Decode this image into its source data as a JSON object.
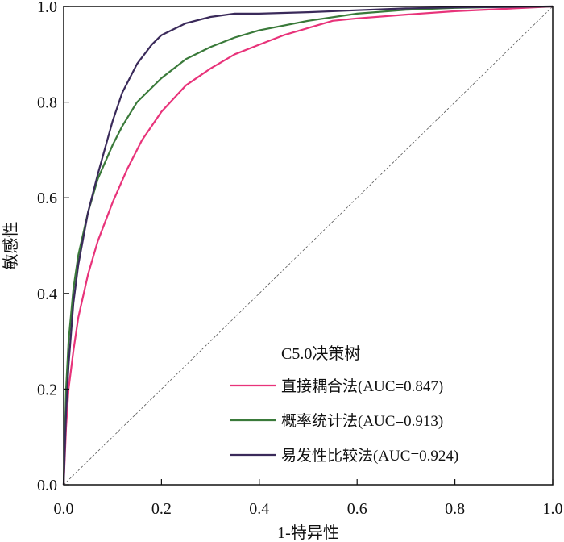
{
  "chart_data": {
    "type": "line",
    "title": "",
    "xlabel": "1-特异性",
    "ylabel": "敏感性",
    "xlim": [
      0,
      1
    ],
    "ylim": [
      0,
      1
    ],
    "xticks": [
      "0.0",
      "0.2",
      "0.4",
      "0.6",
      "0.8",
      "1.0"
    ],
    "yticks": [
      "0.0",
      "0.2",
      "0.4",
      "0.6",
      "0.8",
      "1.0"
    ],
    "grid": false,
    "legend": {
      "title": "C5.0决策树",
      "position": "bottom-right"
    },
    "reference_line": {
      "from": [
        0,
        0
      ],
      "to": [
        1,
        1
      ],
      "style": "dashed"
    },
    "series": [
      {
        "name": "直接耦合法(AUC=0.847)",
        "color": "#e8337a",
        "x": [
          0,
          0.005,
          0.01,
          0.02,
          0.03,
          0.05,
          0.07,
          0.1,
          0.13,
          0.16,
          0.2,
          0.25,
          0.3,
          0.35,
          0.4,
          0.45,
          0.5,
          0.55,
          0.6,
          0.7,
          0.8,
          0.9,
          1.0
        ],
        "y": [
          0,
          0.12,
          0.2,
          0.28,
          0.35,
          0.44,
          0.51,
          0.59,
          0.66,
          0.72,
          0.78,
          0.835,
          0.87,
          0.9,
          0.92,
          0.94,
          0.955,
          0.97,
          0.975,
          0.983,
          0.99,
          0.995,
          1.0
        ]
      },
      {
        "name": "概率统计法(AUC=0.913)",
        "color": "#3a7a3a",
        "x": [
          0,
          0.005,
          0.01,
          0.02,
          0.03,
          0.05,
          0.07,
          0.1,
          0.12,
          0.15,
          0.2,
          0.25,
          0.3,
          0.35,
          0.4,
          0.5,
          0.6,
          0.7,
          0.8,
          0.9,
          1.0
        ],
        "y": [
          0,
          0.2,
          0.3,
          0.41,
          0.48,
          0.57,
          0.64,
          0.71,
          0.75,
          0.8,
          0.85,
          0.89,
          0.915,
          0.935,
          0.95,
          0.97,
          0.985,
          0.993,
          0.997,
          0.999,
          1.0
        ]
      },
      {
        "name": "易发性比较法(AUC=0.924)",
        "color": "#3a2a5a",
        "x": [
          0,
          0.005,
          0.01,
          0.02,
          0.03,
          0.05,
          0.07,
          0.1,
          0.12,
          0.15,
          0.18,
          0.2,
          0.25,
          0.3,
          0.35,
          0.4,
          0.5,
          0.6,
          0.7,
          0.8,
          0.9,
          1.0
        ],
        "y": [
          0,
          0.15,
          0.25,
          0.38,
          0.46,
          0.57,
          0.65,
          0.76,
          0.82,
          0.88,
          0.92,
          0.94,
          0.965,
          0.978,
          0.985,
          0.985,
          0.988,
          0.992,
          0.996,
          0.998,
          0.999,
          1.0
        ]
      }
    ]
  }
}
